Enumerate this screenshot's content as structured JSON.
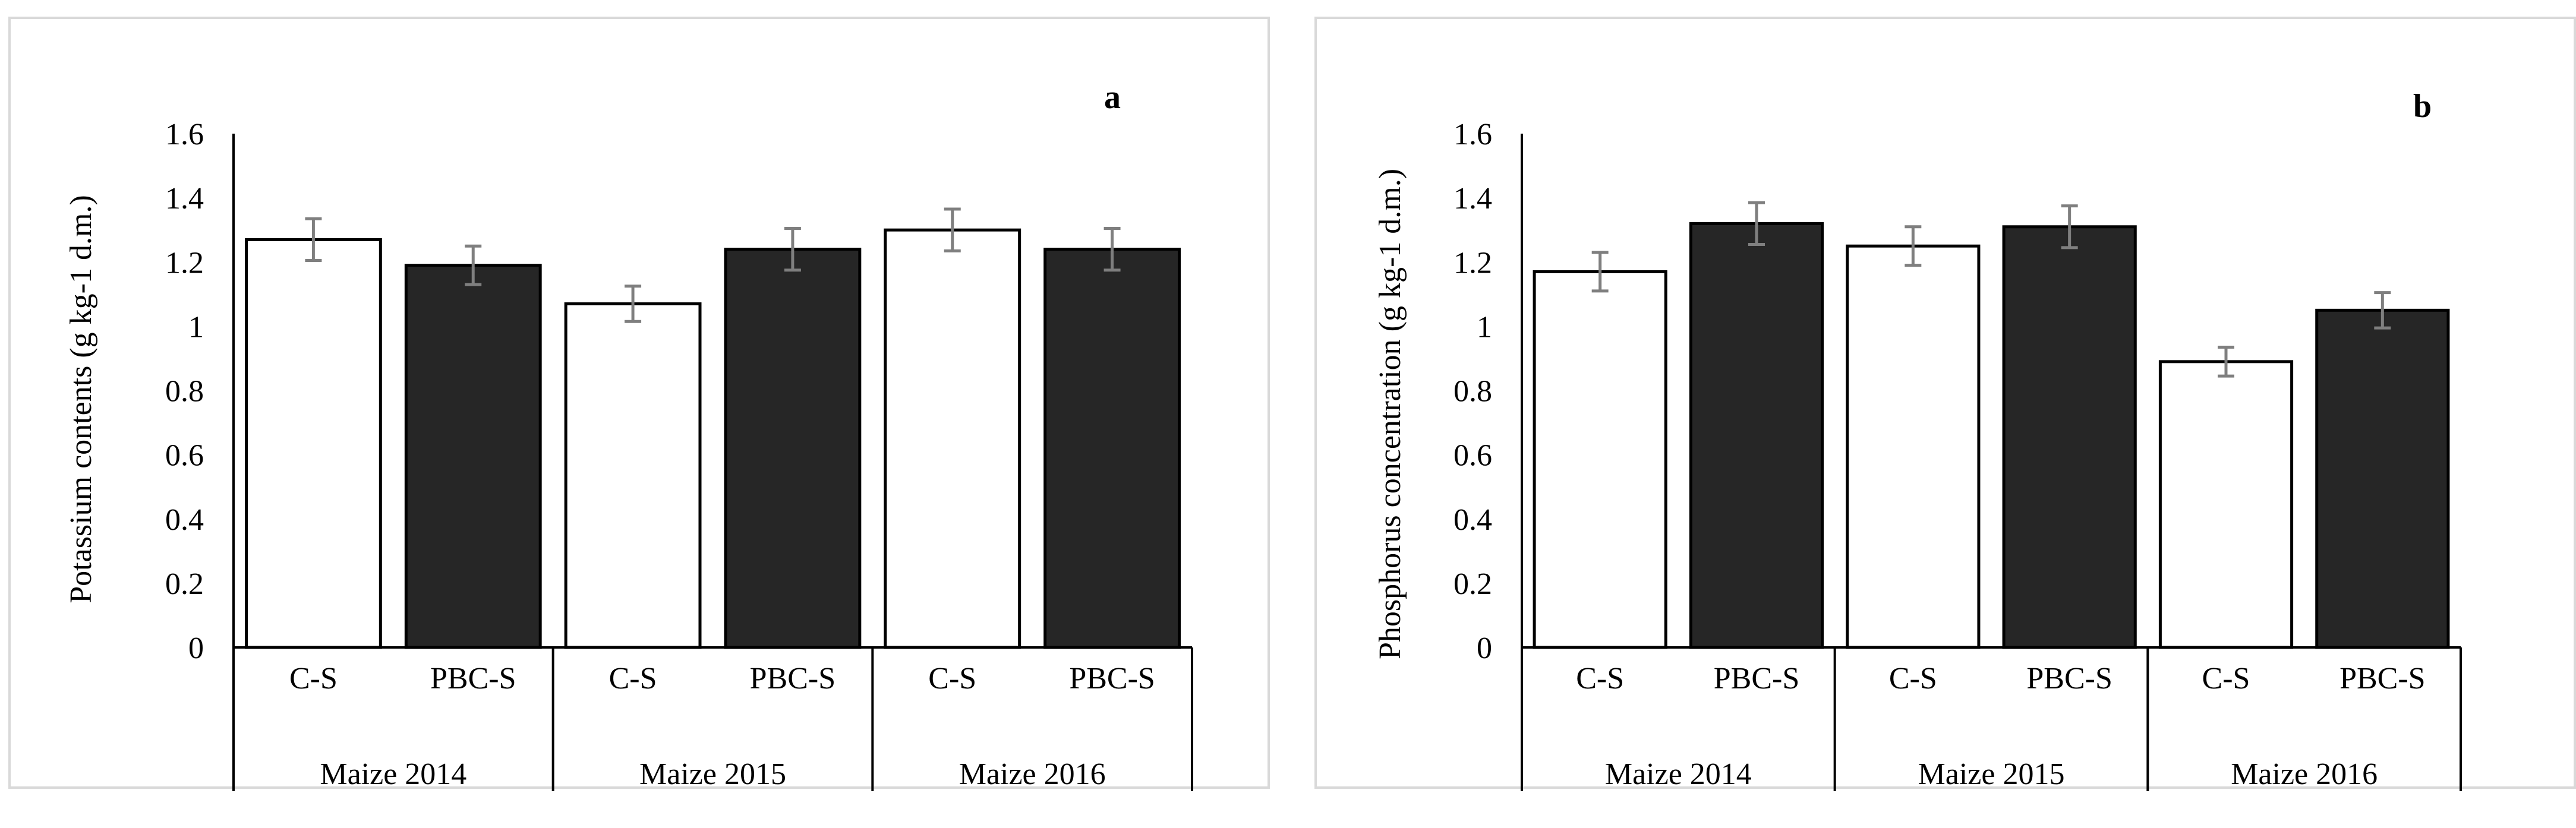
{
  "chart_data": [
    {
      "type": "bar",
      "panel_label": "a",
      "ylabel": "Potassium contents (g  kg-1 d.m.)",
      "ylim": [
        0,
        1.6
      ],
      "yticks": [
        "0",
        "0.2",
        "0.4",
        "0.6",
        "0.8",
        "1",
        "1.2",
        "1.4",
        "1.6"
      ],
      "groups": [
        "Maize 2014",
        "Maize 2015",
        "Maize 2016"
      ],
      "categories": [
        "C-S",
        "PBC-S",
        "C-S",
        "PBC-S",
        "C-S",
        "PBC-S"
      ],
      "values": [
        1.27,
        1.19,
        1.07,
        1.24,
        1.3,
        1.24
      ],
      "errors": [
        0.065,
        0.06,
        0.055,
        0.065,
        0.065,
        0.065
      ],
      "fills": [
        "#ffffff",
        "#262626",
        "#ffffff",
        "#262626",
        "#ffffff",
        "#262626"
      ],
      "grid": false
    },
    {
      "type": "bar",
      "panel_label": "b",
      "ylabel": "Phosphorus concentration (g  kg-1 d.m.)",
      "ylim": [
        0,
        1.6
      ],
      "yticks": [
        "0",
        "0.2",
        "0.4",
        "0.6",
        "0.8",
        "1",
        "1.2",
        "1.4",
        "1.6"
      ],
      "groups": [
        "Maize 2014",
        "Maize 2015",
        "Maize 2016"
      ],
      "categories": [
        "C-S",
        "PBC-S",
        "C-S",
        "PBC-S",
        "C-S",
        "PBC-S"
      ],
      "values": [
        1.17,
        1.32,
        1.25,
        1.31,
        0.89,
        1.05
      ],
      "errors": [
        0.06,
        0.065,
        0.06,
        0.065,
        0.045,
        0.055
      ],
      "fills": [
        "#ffffff",
        "#262626",
        "#ffffff",
        "#262626",
        "#ffffff",
        "#262626"
      ],
      "grid": false
    }
  ]
}
